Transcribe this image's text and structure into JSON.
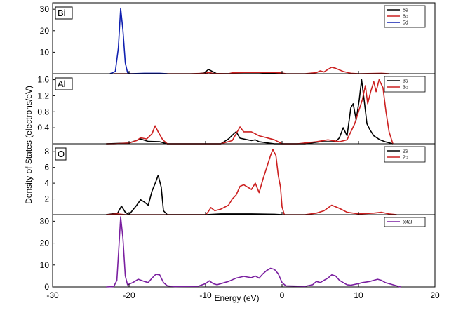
{
  "chart_data": {
    "type": "line",
    "xlabel": "Energy (eV)",
    "ylabel": "Density of States (electrons/eV)",
    "xlim": [
      -30,
      20
    ],
    "xticks": [
      "-30",
      "-20",
      "-10",
      "0",
      "10",
      "20"
    ],
    "grid": false,
    "panels": [
      {
        "label": "Bi",
        "ylim": [
          0,
          33
        ],
        "yticks": [
          "10",
          "20",
          "30"
        ],
        "legend": "top-right",
        "series": [
          {
            "name": "6s",
            "color": "#000000",
            "points": [
              [
                -11,
                0
              ],
              [
                -10.2,
                0.3
              ],
              [
                -9.6,
                2
              ],
              [
                -9.1,
                1
              ],
              [
                -8.6,
                0.1
              ],
              [
                -8,
                0
              ],
              [
                -3,
                0
              ],
              [
                -1,
                0.3
              ],
              [
                0,
                0
              ]
            ]
          },
          {
            "name": "6p",
            "color": "#cc2020",
            "points": [
              [
                -22,
                0
              ],
              [
                -20,
                0
              ],
              [
                -12,
                0
              ],
              [
                -10,
                0.2
              ],
              [
                -9.6,
                0.6
              ],
              [
                -9,
                0.1
              ],
              [
                -7,
                0
              ],
              [
                -6.5,
                0.4
              ],
              [
                -5,
                0.6
              ],
              [
                -3,
                0.6
              ],
              [
                -1,
                0.6
              ],
              [
                0,
                0.3
              ],
              [
                0.5,
                0
              ],
              [
                3,
                0
              ],
              [
                4.5,
                0.5
              ],
              [
                5,
                1.3
              ],
              [
                5.5,
                0.8
              ],
              [
                6,
                2
              ],
              [
                6.5,
                3
              ],
              [
                7,
                2.5
              ],
              [
                8,
                1
              ],
              [
                9,
                0.2
              ],
              [
                10,
                0
              ],
              [
                13,
                0.2
              ],
              [
                14,
                0
              ]
            ]
          },
          {
            "name": "5d",
            "color": "#1020b0",
            "points": [
              [
                -22.5,
                0
              ],
              [
                -21.8,
                1
              ],
              [
                -21.4,
                12
              ],
              [
                -21.1,
                30.5
              ],
              [
                -20.8,
                20
              ],
              [
                -20.5,
                5
              ],
              [
                -20.2,
                0.5
              ],
              [
                -19.8,
                0
              ],
              [
                -18,
                0.2
              ],
              [
                -16,
                0.2
              ],
              [
                -15,
                0
              ]
            ]
          }
        ]
      },
      {
        "label": "Al",
        "ylim": [
          0,
          1.75
        ],
        "yticks": [
          "0.4",
          "0.8",
          "1.2",
          "1.6"
        ],
        "legend": "top-right",
        "series": [
          {
            "name": "3s",
            "color": "#000000",
            "points": [
              [
                -23,
                0
              ],
              [
                -20,
                0.02
              ],
              [
                -18.5,
                0.12
              ],
              [
                -17.5,
                0.06
              ],
              [
                -16,
                0.05
              ],
              [
                -15,
                0
              ],
              [
                -8,
                0
              ],
              [
                -7,
                0.12
              ],
              [
                -6.3,
                0.25
              ],
              [
                -6,
                0.3
              ],
              [
                -5.5,
                0.14
              ],
              [
                -4.5,
                0.1
              ],
              [
                -4,
                0.08
              ],
              [
                -3.5,
                0.1
              ],
              [
                -3,
                0.05
              ],
              [
                -1,
                0
              ],
              [
                3,
                0
              ],
              [
                5,
                0.05
              ],
              [
                7,
                0.05
              ],
              [
                7.5,
                0.15
              ],
              [
                8,
                0.4
              ],
              [
                8.5,
                0.2
              ],
              [
                9,
                0.9
              ],
              [
                9.3,
                1.0
              ],
              [
                9.7,
                0.6
              ],
              [
                10.1,
                1.1
              ],
              [
                10.4,
                1.6
              ],
              [
                10.8,
                1.0
              ],
              [
                11.1,
                0.5
              ],
              [
                11.5,
                0.35
              ],
              [
                12,
                0.2
              ],
              [
                12.8,
                0.1
              ],
              [
                13.5,
                0.05
              ],
              [
                14.5,
                0
              ]
            ]
          },
          {
            "name": "3p",
            "color": "#cc2020",
            "points": [
              [
                -23,
                0
              ],
              [
                -22,
                0
              ],
              [
                -20,
                0.02
              ],
              [
                -19,
                0.08
              ],
              [
                -18.5,
                0.15
              ],
              [
                -17.7,
                0.12
              ],
              [
                -17,
                0.25
              ],
              [
                -16.6,
                0.45
              ],
              [
                -16.2,
                0.3
              ],
              [
                -15.6,
                0.1
              ],
              [
                -15,
                0
              ],
              [
                -8,
                0
              ],
              [
                -6.5,
                0.08
              ],
              [
                -5.5,
                0.42
              ],
              [
                -5,
                0.3
              ],
              [
                -4,
                0.3
              ],
              [
                -3,
                0.2
              ],
              [
                -2,
                0.15
              ],
              [
                -1,
                0.1
              ],
              [
                0,
                0
              ],
              [
                2,
                0
              ],
              [
                4.5,
                0.05
              ],
              [
                6,
                0.1
              ],
              [
                7.5,
                0.05
              ],
              [
                8.5,
                0.1
              ],
              [
                9,
                0.3
              ],
              [
                9.5,
                0.5
              ],
              [
                10,
                0.8
              ],
              [
                10.5,
                1.1
              ],
              [
                10.9,
                1.45
              ],
              [
                11.2,
                1.0
              ],
              [
                11.6,
                1.3
              ],
              [
                12,
                1.55
              ],
              [
                12.3,
                1.3
              ],
              [
                12.7,
                1.6
              ],
              [
                13.2,
                1.4
              ],
              [
                13.6,
                0.8
              ],
              [
                14,
                0.3
              ],
              [
                14.5,
                0
              ]
            ]
          }
        ]
      },
      {
        "label": "O",
        "ylim": [
          0,
          9
        ],
        "yticks": [
          "2",
          "4",
          "6",
          "8"
        ],
        "legend": "top-right",
        "series": [
          {
            "name": "2s",
            "color": "#000000",
            "points": [
              [
                -23,
                0
              ],
              [
                -21.5,
                0.2
              ],
              [
                -21,
                1.1
              ],
              [
                -20.5,
                0.3
              ],
              [
                -20,
                0
              ],
              [
                -19.5,
                0.6
              ],
              [
                -19,
                1.2
              ],
              [
                -18.5,
                1.9
              ],
              [
                -18,
                1.6
              ],
              [
                -17.5,
                1.2
              ],
              [
                -17,
                3.0
              ],
              [
                -16.5,
                4.2
              ],
              [
                -16.2,
                5.0
              ],
              [
                -15.8,
                3.5
              ],
              [
                -15.5,
                0.5
              ],
              [
                -15,
                0
              ],
              [
                -10,
                0
              ],
              [
                -8,
                0.1
              ],
              [
                -4,
                0.1
              ],
              [
                -1,
                0.05
              ],
              [
                0,
                0
              ]
            ]
          },
          {
            "name": "2p",
            "color": "#cc2020",
            "points": [
              [
                -23,
                0
              ],
              [
                -21.5,
                0.1
              ],
              [
                -20.5,
                0
              ],
              [
                -10,
                0
              ],
              [
                -9.7,
                0.3
              ],
              [
                -9.3,
                0.9
              ],
              [
                -8.8,
                0.5
              ],
              [
                -8,
                0.7
              ],
              [
                -7,
                1.2
              ],
              [
                -6.5,
                2.0
              ],
              [
                -6,
                2.5
              ],
              [
                -5.5,
                3.6
              ],
              [
                -5,
                3.8
              ],
              [
                -4.5,
                3.5
              ],
              [
                -4,
                3.2
              ],
              [
                -3.5,
                4.0
              ],
              [
                -3,
                2.8
              ],
              [
                -2.5,
                4.5
              ],
              [
                -2,
                6.0
              ],
              [
                -1.5,
                7.5
              ],
              [
                -1.2,
                8.3
              ],
              [
                -0.8,
                7.5
              ],
              [
                -0.5,
                5.0
              ],
              [
                -0.2,
                3.5
              ],
              [
                0,
                1.0
              ],
              [
                0.3,
                0
              ],
              [
                3,
                0
              ],
              [
                4.5,
                0.2
              ],
              [
                5.5,
                0.5
              ],
              [
                6.5,
                1.2
              ],
              [
                7.5,
                0.8
              ],
              [
                8.5,
                0.3
              ],
              [
                10,
                0.1
              ],
              [
                12,
                0.2
              ],
              [
                13,
                0.3
              ],
              [
                14,
                0.1
              ],
              [
                15,
                0
              ]
            ]
          }
        ]
      },
      {
        "label": "",
        "ylim": [
          0,
          33
        ],
        "yticks": [
          "0",
          "10",
          "20",
          "30"
        ],
        "legend": "top-right",
        "series": [
          {
            "name": "total",
            "color": "#7a1fa0",
            "points": [
              [
                -23,
                0
              ],
              [
                -22,
                0.2
              ],
              [
                -21.6,
                3
              ],
              [
                -21.3,
                20
              ],
              [
                -21.1,
                32
              ],
              [
                -20.8,
                22
              ],
              [
                -20.5,
                5
              ],
              [
                -20.2,
                1
              ],
              [
                -19.5,
                2
              ],
              [
                -18.8,
                3.5
              ],
              [
                -18,
                2.5
              ],
              [
                -17.5,
                2
              ],
              [
                -17,
                4
              ],
              [
                -16.5,
                5.8
              ],
              [
                -16,
                5.5
              ],
              [
                -15.5,
                2
              ],
              [
                -15,
                0.5
              ],
              [
                -14,
                0.2
              ],
              [
                -11,
                0.3
              ],
              [
                -10,
                1.5
              ],
              [
                -9.5,
                2.8
              ],
              [
                -9,
                1.5
              ],
              [
                -8.5,
                1
              ],
              [
                -8,
                1.5
              ],
              [
                -7,
                2.5
              ],
              [
                -6,
                4
              ],
              [
                -5,
                4.8
              ],
              [
                -4.5,
                4.5
              ],
              [
                -4,
                4.2
              ],
              [
                -3.5,
                5
              ],
              [
                -3,
                4
              ],
              [
                -2.5,
                6
              ],
              [
                -2,
                7.5
              ],
              [
                -1.5,
                8.5
              ],
              [
                -1,
                8
              ],
              [
                -0.5,
                6
              ],
              [
                0,
                2
              ],
              [
                0.5,
                0.5
              ],
              [
                3,
                0.3
              ],
              [
                4,
                1
              ],
              [
                4.5,
                2.5
              ],
              [
                5,
                2
              ],
              [
                5.5,
                3
              ],
              [
                6,
                4
              ],
              [
                6.5,
                5.5
              ],
              [
                7,
                5
              ],
              [
                7.5,
                3
              ],
              [
                8,
                2
              ],
              [
                8.5,
                1
              ],
              [
                9,
                0.8
              ],
              [
                10,
                1.5
              ],
              [
                10.5,
                2
              ],
              [
                11,
                2.2
              ],
              [
                11.5,
                2.5
              ],
              [
                12,
                3
              ],
              [
                12.5,
                3.5
              ],
              [
                13,
                3
              ],
              [
                13.5,
                2
              ],
              [
                14.5,
                1
              ],
              [
                15.5,
                0
              ]
            ]
          }
        ]
      }
    ]
  }
}
